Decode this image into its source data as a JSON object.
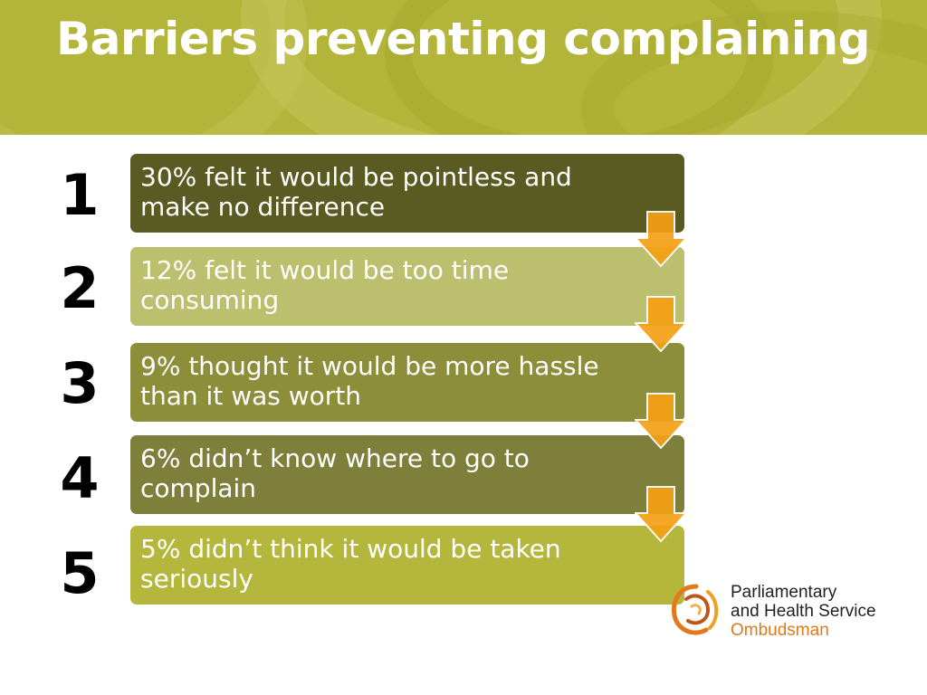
{
  "header": {
    "title": "Barriers preventing complaining"
  },
  "steps": [
    {
      "number": "1",
      "text": "30% felt it would be pointless and make no difference",
      "color": "#5a5a23"
    },
    {
      "number": "2",
      "text": "12% felt it would be too time consuming",
      "color": "#bcbf6e"
    },
    {
      "number": "3",
      "text": "9% thought it would be more hassle than it was worth",
      "color": "#8c8e39"
    },
    {
      "number": "4",
      "text": "6% didn’t know where to go to complain",
      "color": "#7e7f3b"
    },
    {
      "number": "5",
      "text": "5% didn’t think it would be taken seriously",
      "color": "#b5b73c"
    }
  ],
  "colors": {
    "header_bg": "#b3b43a",
    "arrow": "#f5a015"
  },
  "logo": {
    "line1": "Parliamentary",
    "line2": "and Health Service",
    "line3": "Ombudsman"
  }
}
